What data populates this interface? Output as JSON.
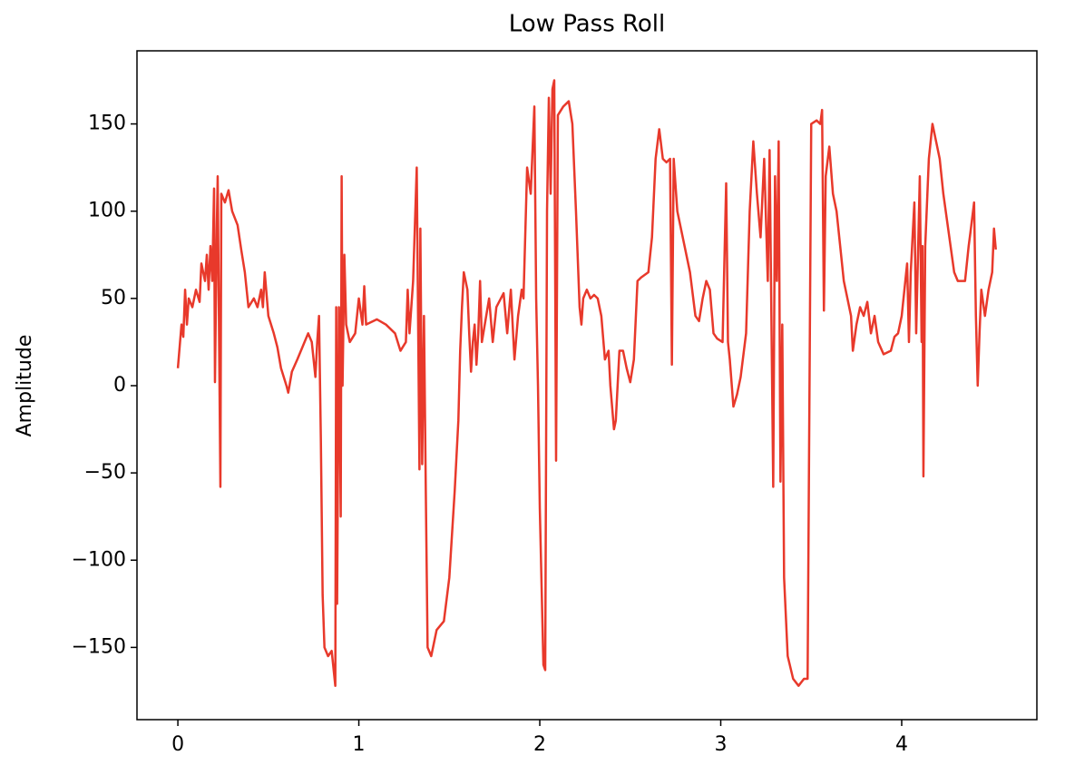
{
  "chart_data": {
    "type": "line",
    "title": "Low Pass Roll",
    "y_label": "Amplitude",
    "xlim": [
      -0.226,
      4.747
    ],
    "ylim": [
      -191.4,
      191.9
    ],
    "xticks": [
      0,
      1,
      2,
      3,
      4
    ],
    "yticks": [
      {
        "value": -150,
        "label": "−150"
      },
      {
        "value": -100,
        "label": "−100"
      },
      {
        "value": -50,
        "label": "−50"
      },
      0,
      50,
      100,
      150
    ],
    "series": [
      {
        "color": "#e8392b",
        "x": [
          0,
          0.02,
          0.03,
          0.04,
          0.05,
          0.06,
          0.08,
          0.1,
          0.12,
          0.13,
          0.15,
          0.16,
          0.17,
          0.18,
          0.19,
          0.2,
          0.205,
          0.215,
          0.22,
          0.235,
          0.24,
          0.26,
          0.28,
          0.3,
          0.33,
          0.35,
          0.37,
          0.39,
          0.42,
          0.44,
          0.46,
          0.47,
          0.48,
          0.5,
          0.53,
          0.55,
          0.57,
          0.6,
          0.61,
          0.63,
          0.66,
          0.7,
          0.72,
          0.74,
          0.76,
          0.77,
          0.78,
          0.79,
          0.8,
          0.81,
          0.83,
          0.85,
          0.87,
          0.875,
          0.88,
          0.89,
          0.9,
          0.905,
          0.91,
          0.92,
          0.93,
          0.95,
          0.98,
          1.0,
          1.02,
          1.03,
          1.04,
          1.1,
          1.15,
          1.2,
          1.23,
          1.26,
          1.27,
          1.28,
          1.3,
          1.32,
          1.335,
          1.34,
          1.35,
          1.36,
          1.37,
          1.38,
          1.4,
          1.43,
          1.47,
          1.5,
          1.53,
          1.55,
          1.56,
          1.57,
          1.58,
          1.6,
          1.61,
          1.62,
          1.63,
          1.64,
          1.65,
          1.66,
          1.67,
          1.68,
          1.72,
          1.74,
          1.76,
          1.8,
          1.82,
          1.84,
          1.86,
          1.88,
          1.9,
          1.91,
          1.93,
          1.95,
          1.97,
          1.98,
          1.99,
          2.0,
          2.02,
          2.03,
          2.04,
          2.05,
          2.06,
          2.07,
          2.08,
          2.09,
          2.1,
          2.13,
          2.16,
          2.18,
          2.2,
          2.22,
          2.23,
          2.24,
          2.26,
          2.28,
          2.3,
          2.32,
          2.34,
          2.36,
          2.38,
          2.39,
          2.41,
          2.42,
          2.44,
          2.46,
          2.48,
          2.5,
          2.52,
          2.54,
          2.56,
          2.6,
          2.62,
          2.64,
          2.66,
          2.68,
          2.7,
          2.72,
          2.73,
          2.74,
          2.76,
          2.8,
          2.83,
          2.86,
          2.88,
          2.9,
          2.92,
          2.94,
          2.96,
          2.98,
          3.01,
          3.03,
          3.04,
          3.05,
          3.07,
          3.09,
          3.11,
          3.14,
          3.16,
          3.18,
          3.2,
          3.22,
          3.24,
          3.26,
          3.27,
          3.29,
          3.3,
          3.31,
          3.32,
          3.33,
          3.34,
          3.35,
          3.37,
          3.4,
          3.43,
          3.46,
          3.48,
          3.5,
          3.53,
          3.55,
          3.56,
          3.57,
          3.58,
          3.6,
          3.62,
          3.64,
          3.66,
          3.68,
          3.7,
          3.72,
          3.73,
          3.75,
          3.77,
          3.79,
          3.81,
          3.83,
          3.85,
          3.87,
          3.9,
          3.94,
          3.96,
          3.98,
          4.0,
          4.03,
          4.04,
          4.05,
          4.07,
          4.08,
          4.1,
          4.11,
          4.115,
          4.12,
          4.13,
          4.15,
          4.17,
          4.19,
          4.21,
          4.23,
          4.25,
          4.27,
          4.29,
          4.31,
          4.35,
          4.37,
          4.38,
          4.4,
          4.41,
          4.42,
          4.43,
          4.44,
          4.46,
          4.48,
          4.5,
          4.51,
          4.52
        ],
        "values": [
          10,
          35,
          28,
          55,
          35,
          50,
          45,
          55,
          48,
          70,
          60,
          75,
          55,
          80,
          60,
          113,
          2,
          90,
          120,
          -58,
          110,
          105,
          112,
          100,
          92,
          78,
          65,
          45,
          50,
          45,
          55,
          45,
          65,
          40,
          30,
          22,
          10,
          0,
          -4,
          8,
          15,
          25,
          30,
          25,
          5,
          25,
          40,
          -30,
          -120,
          -150,
          -155,
          -152,
          -172,
          45,
          -125,
          45,
          -75,
          120,
          0,
          75,
          35,
          25,
          30,
          50,
          35,
          57,
          35,
          38,
          35,
          30,
          20,
          25,
          55,
          30,
          60,
          125,
          -48,
          90,
          -45,
          40,
          -60,
          -150,
          -155,
          -140,
          -135,
          -110,
          -60,
          -20,
          20,
          45,
          65,
          55,
          30,
          8,
          25,
          35,
          12,
          30,
          60,
          25,
          50,
          25,
          45,
          53,
          30,
          55,
          15,
          40,
          55,
          50,
          125,
          110,
          160,
          50,
          0,
          -70,
          -160,
          -163,
          100,
          165,
          110,
          170,
          175,
          -43,
          155,
          160,
          163,
          150,
          100,
          45,
          35,
          50,
          55,
          50,
          52,
          50,
          40,
          15,
          20,
          0,
          -25,
          -20,
          20,
          20,
          10,
          2,
          15,
          60,
          62,
          65,
          85,
          130,
          147,
          130,
          128,
          130,
          12,
          130,
          100,
          80,
          65,
          40,
          37,
          50,
          60,
          55,
          30,
          27,
          25,
          116,
          25,
          15,
          -12,
          -5,
          5,
          30,
          100,
          140,
          110,
          85,
          130,
          60,
          135,
          -58,
          120,
          60,
          140,
          -55,
          35,
          -110,
          -155,
          -168,
          -172,
          -168,
          -168,
          150,
          152,
          150,
          158,
          43,
          120,
          137,
          110,
          100,
          80,
          60,
          50,
          40,
          20,
          35,
          45,
          40,
          48,
          30,
          40,
          25,
          18,
          20,
          28,
          30,
          40,
          70,
          25,
          65,
          105,
          30,
          120,
          25,
          80,
          -52,
          80,
          130,
          150,
          140,
          130,
          110,
          95,
          80,
          65,
          60,
          60,
          80,
          88,
          105,
          40,
          0,
          30,
          55,
          40,
          55,
          65,
          90,
          78
        ]
      }
    ]
  }
}
